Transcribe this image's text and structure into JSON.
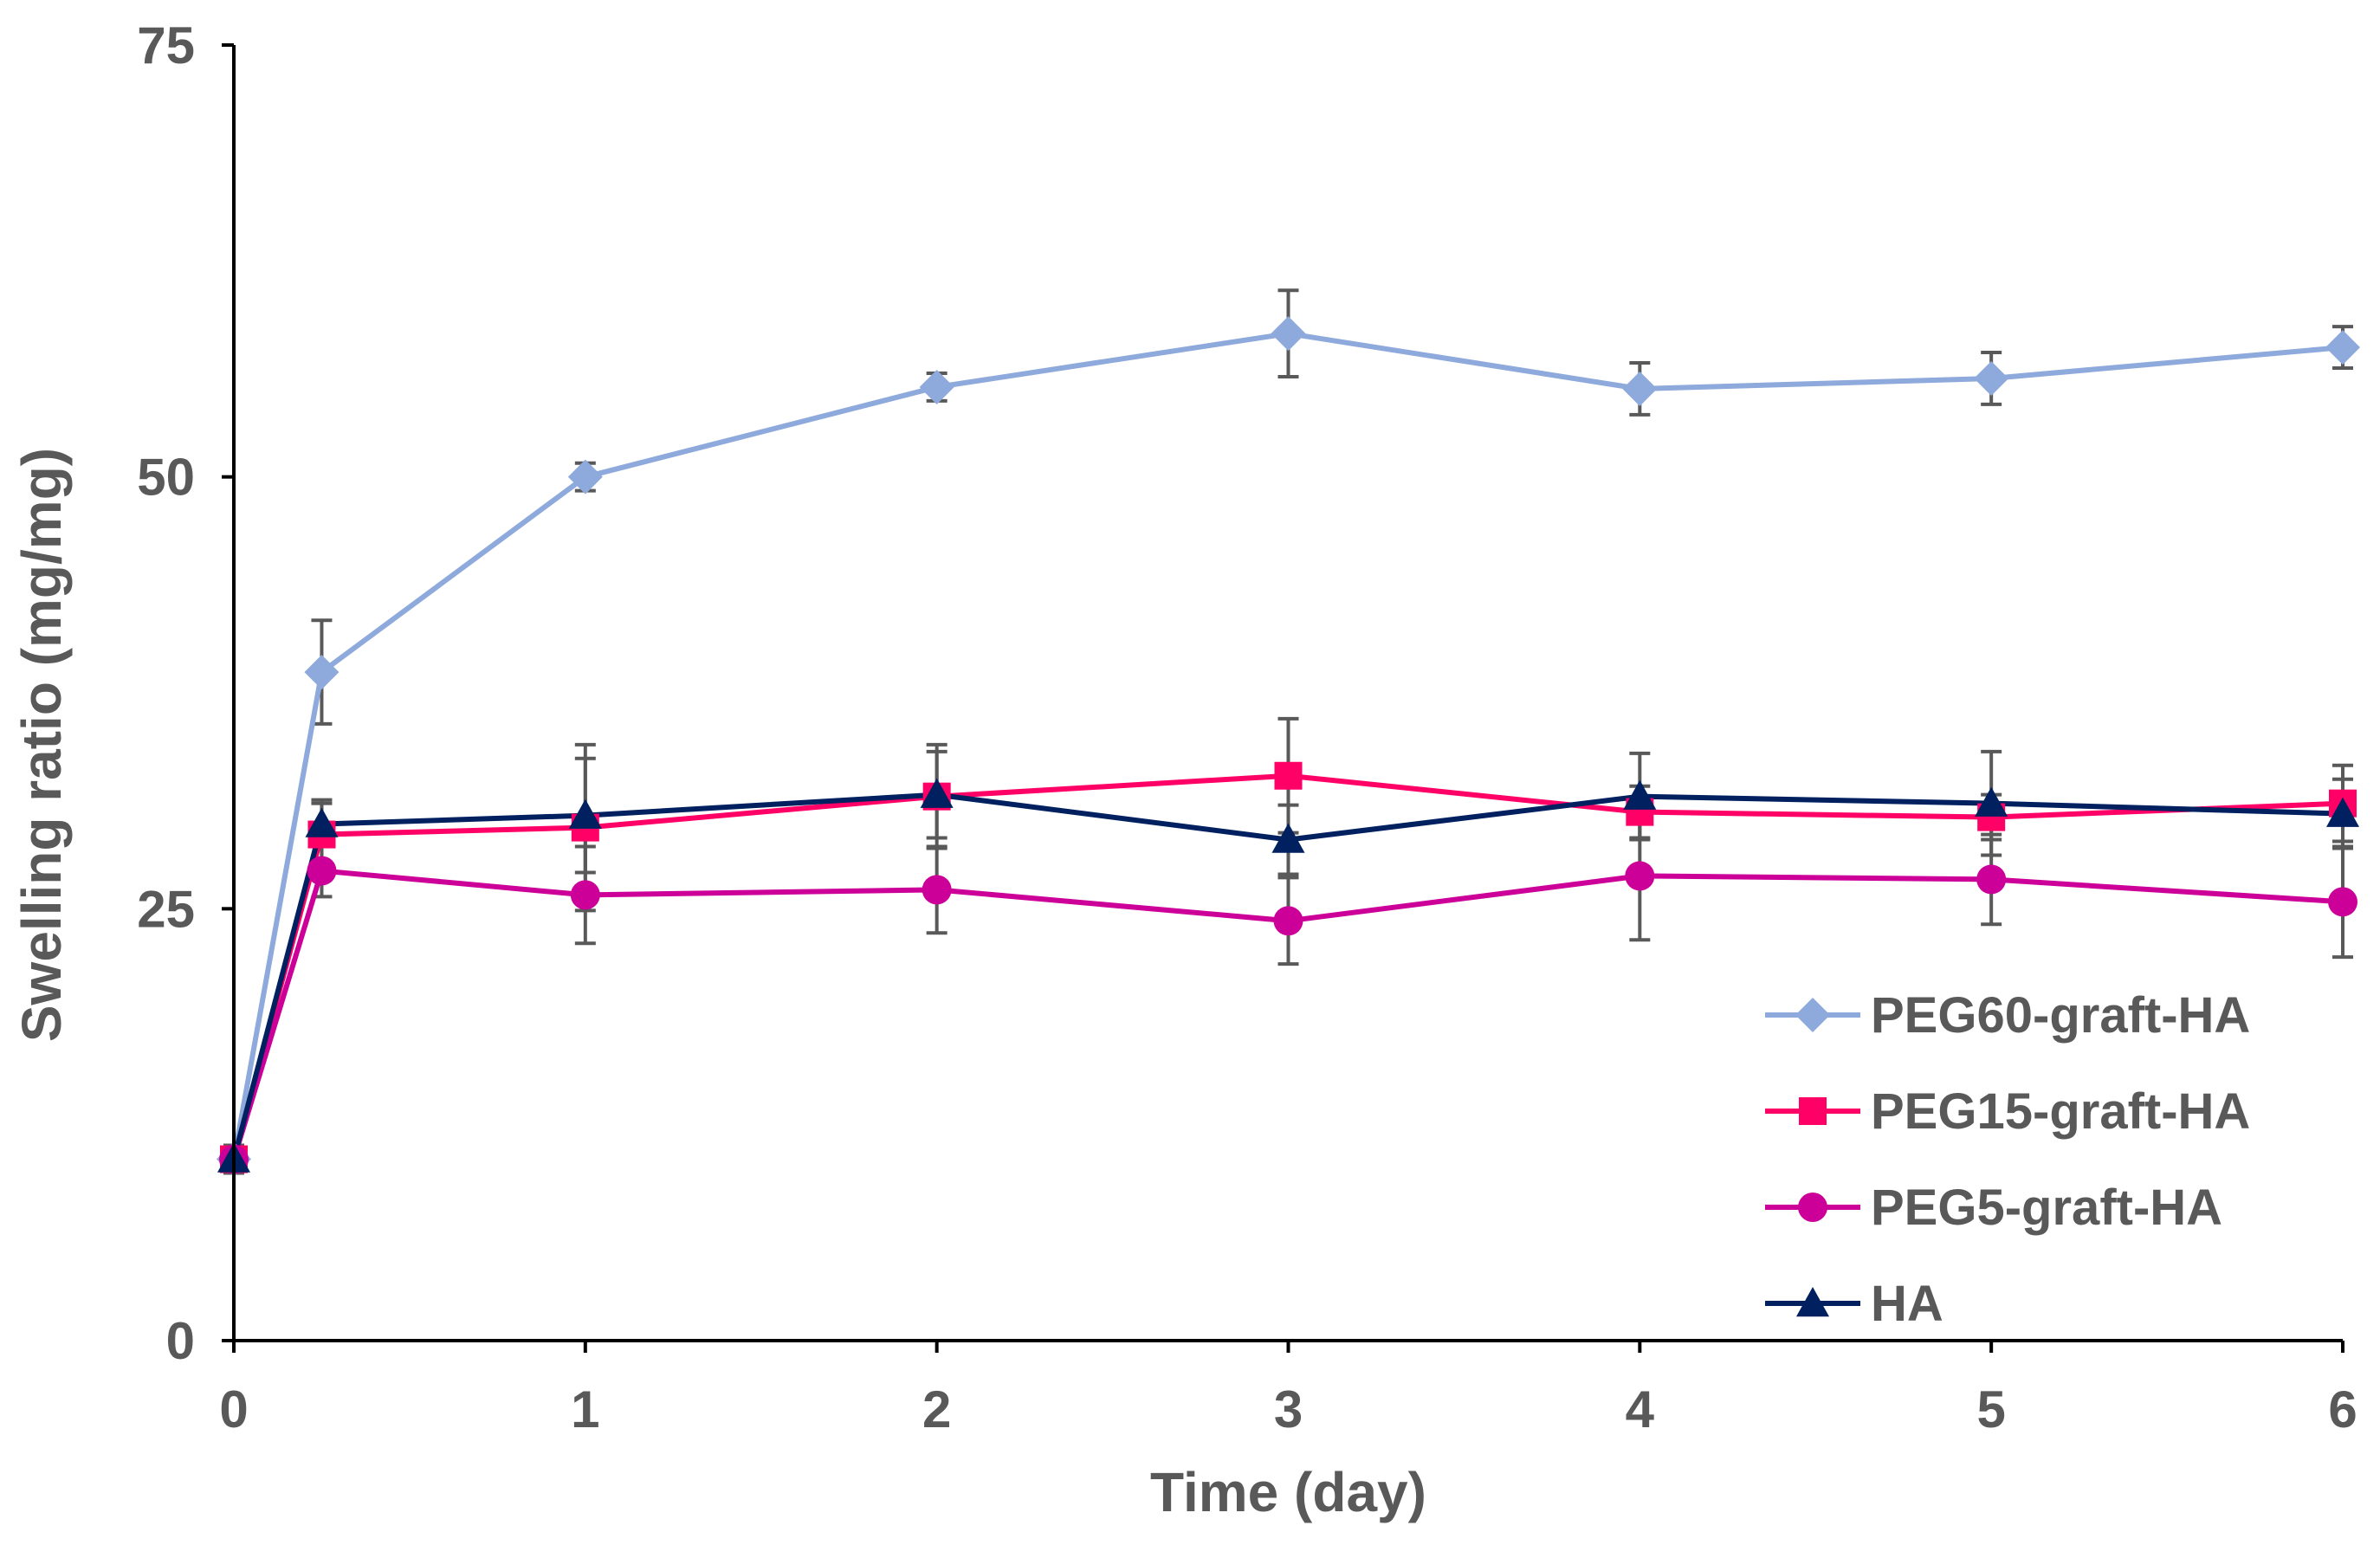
{
  "chart_data": {
    "type": "line",
    "title": "",
    "xlabel": "Time (day)",
    "ylabel": "Swelling ratio (mg/mg)",
    "xlim": [
      0,
      6
    ],
    "ylim": [
      0,
      75
    ],
    "xticks": [
      0,
      1,
      2,
      3,
      4,
      5,
      6
    ],
    "yticks": [
      0,
      25,
      50,
      75
    ],
    "grid": false,
    "legend_position": "bottom-right",
    "x": [
      0,
      0.25,
      1,
      2,
      3,
      4,
      5,
      6
    ],
    "series": [
      {
        "name": "PEG60-graft-HA",
        "color": "#8EA9DB",
        "marker": "diamond",
        "values": [
          10.5,
          38.7,
          50.0,
          55.2,
          58.3,
          55.1,
          55.7,
          57.5
        ],
        "errors": [
          0.8,
          3.0,
          0.8,
          0.8,
          2.5,
          1.5,
          1.5,
          1.2
        ]
      },
      {
        "name": "PEG15-graft-HA",
        "color": "#FF0066",
        "marker": "square",
        "values": [
          10.5,
          29.3,
          29.7,
          31.5,
          32.7,
          30.6,
          30.3,
          31.1
        ],
        "errors": [
          0.8,
          2.0,
          4.8,
          3.0,
          3.3,
          1.5,
          1.3,
          2.2
        ]
      },
      {
        "name": "PEG5-graft-HA",
        "color": "#CC0099",
        "marker": "circle",
        "values": [
          10.5,
          27.2,
          25.8,
          26.1,
          24.3,
          26.9,
          26.7,
          25.4
        ],
        "errors": [
          0.8,
          1.5,
          2.8,
          2.5,
          2.5,
          3.7,
          2.6,
          3.2
        ]
      },
      {
        "name": "HA",
        "color": "#002060",
        "marker": "triangle",
        "values": [
          10.5,
          29.9,
          30.4,
          31.6,
          29.0,
          31.5,
          31.1,
          30.5
        ],
        "errors": [
          0.8,
          1.2,
          3.3,
          2.5,
          2.0,
          2.5,
          3.0,
          2.0
        ]
      }
    ]
  }
}
